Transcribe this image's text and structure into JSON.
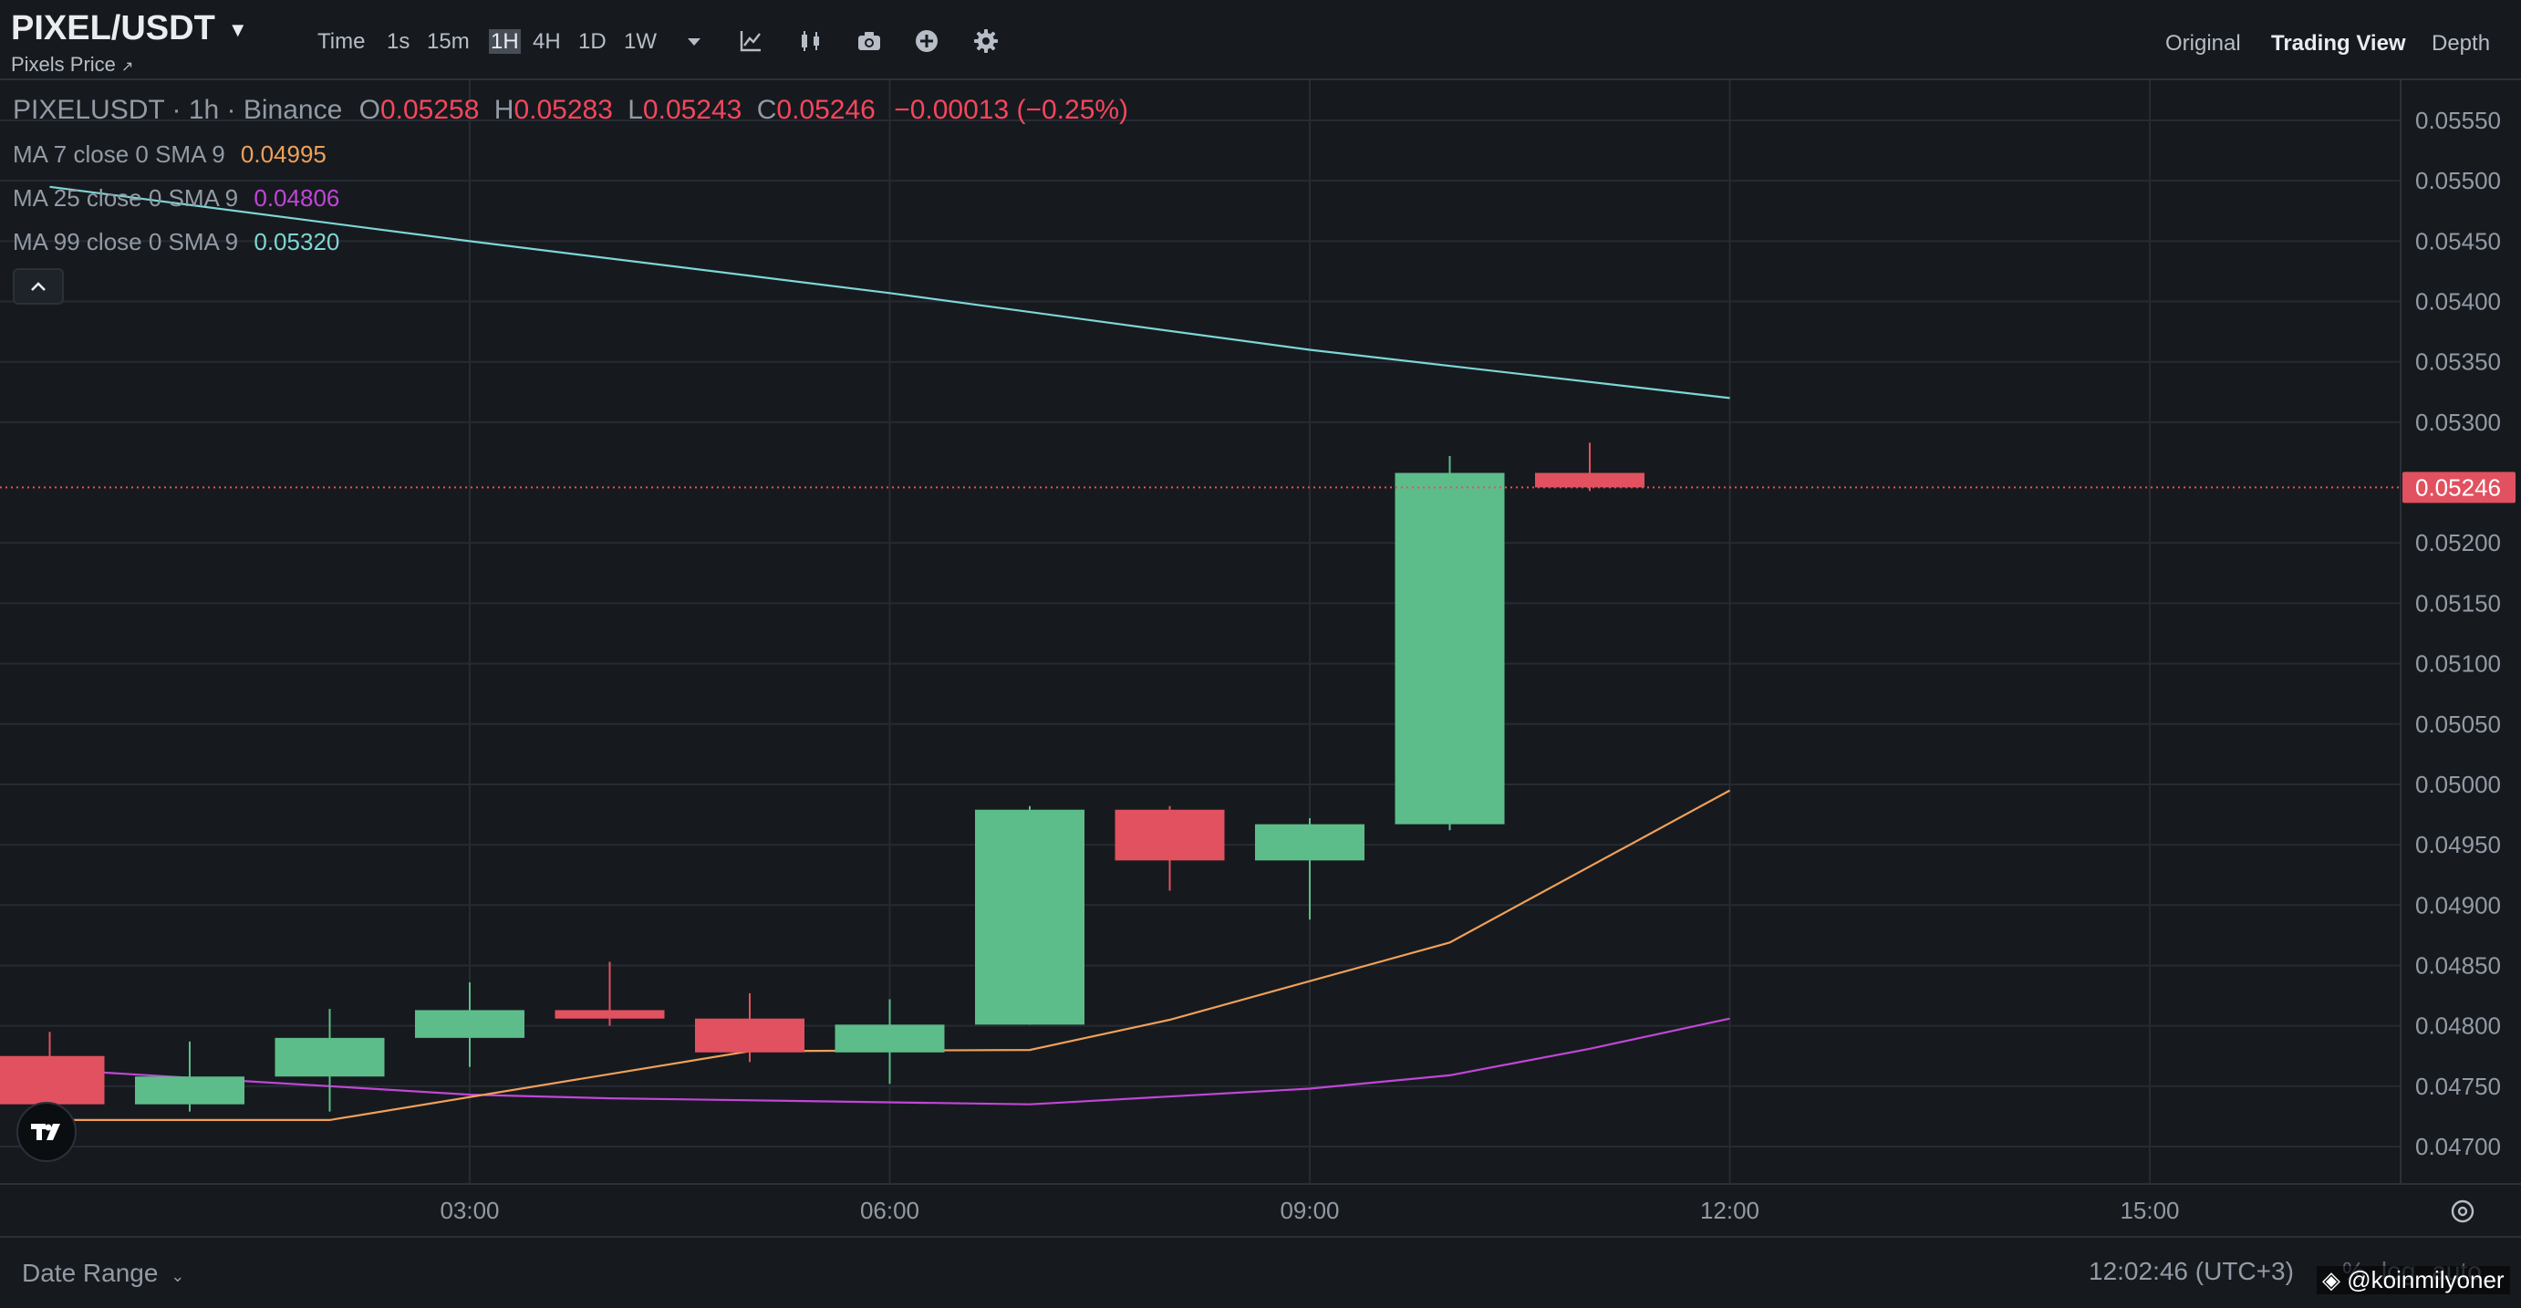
{
  "header": {
    "symbol": "PIXEL/USDT",
    "subtitle": "Pixels Price",
    "subtitle_icon": "external-link-icon",
    "intervals": [
      {
        "label": "Time",
        "active": false
      },
      {
        "label": "1s",
        "active": false
      },
      {
        "label": "15m",
        "active": false
      },
      {
        "label": "1H",
        "active": true
      },
      {
        "label": "4H",
        "active": false
      },
      {
        "label": "1D",
        "active": false
      },
      {
        "label": "1W",
        "active": false
      }
    ],
    "tools": [
      "interval-dropdown-icon",
      "indicators-icon",
      "chart-type-icon",
      "camera-icon",
      "add-icon",
      "settings-icon"
    ],
    "views": [
      {
        "label": "Original",
        "active": false
      },
      {
        "label": "Trading View",
        "active": true
      },
      {
        "label": "Depth",
        "active": false
      }
    ]
  },
  "legend": {
    "pair": "PIXELUSDT · 1h · Binance",
    "o_label": "O",
    "o": "0.05258",
    "h_label": "H",
    "h": "0.05283",
    "l_label": "L",
    "l": "0.05243",
    "c_label": "C",
    "c": "0.05246",
    "change": "−0.00013 (−0.25%)",
    "ma7_label": "MA 7 close 0 SMA 9",
    "ma7_value": "0.04995",
    "ma25_label": "MA 25 close 0 SMA 9",
    "ma25_value": "0.04806",
    "ma99_label": "MA 99 close 0 SMA 9",
    "ma99_value": "0.05320"
  },
  "colors": {
    "up": "#5dbd8a",
    "down": "#e2515f",
    "ma7": "#f0a05a",
    "ma25": "#c146d8",
    "ma99": "#7ed6d6",
    "price_tag": "#e2515f"
  },
  "price_axis": {
    "ticks": [
      "0.05550",
      "0.05500",
      "0.05450",
      "0.05400",
      "0.05350",
      "0.05300",
      "0.05200",
      "0.05150",
      "0.05100",
      "0.05050",
      "0.05000",
      "0.04950",
      "0.04900",
      "0.04850",
      "0.04800",
      "0.04750",
      "0.04700"
    ],
    "last_price": "0.05246"
  },
  "time_axis": {
    "labels": [
      "03:00",
      "06:00",
      "09:00",
      "12:00",
      "15:00"
    ]
  },
  "chart_data": {
    "type": "candlestick",
    "y_range": [
      0.0467,
      0.0558
    ],
    "x_range_hours": [
      0.0,
      15.0
    ],
    "candles": [
      {
        "t": 1.0,
        "o": 0.04775,
        "h": 0.04795,
        "l": 0.0473,
        "c": 0.04735
      },
      {
        "t": 2.0,
        "o": 0.04735,
        "h": 0.04787,
        "l": 0.04729,
        "c": 0.04758
      },
      {
        "t": 3.0,
        "o": 0.04758,
        "h": 0.04814,
        "l": 0.04729,
        "c": 0.0479
      },
      {
        "t": 4.0,
        "o": 0.0479,
        "h": 0.04836,
        "l": 0.04766,
        "c": 0.04813
      },
      {
        "t": 5.0,
        "o": 0.04813,
        "h": 0.04853,
        "l": 0.048,
        "c": 0.04806
      },
      {
        "t": 6.0,
        "o": 0.04806,
        "h": 0.04827,
        "l": 0.0477,
        "c": 0.04778
      },
      {
        "t": 7.0,
        "o": 0.04778,
        "h": 0.04822,
        "l": 0.04752,
        "c": 0.04801
      },
      {
        "t": 8.0,
        "o": 0.04801,
        "h": 0.04982,
        "l": 0.04801,
        "c": 0.04979
      },
      {
        "t": 9.0,
        "o": 0.04979,
        "h": 0.04982,
        "l": 0.04912,
        "c": 0.04937
      },
      {
        "t": 10.0,
        "o": 0.04937,
        "h": 0.04972,
        "l": 0.04888,
        "c": 0.04967
      },
      {
        "t": 11.0,
        "o": 0.04967,
        "h": 0.05272,
        "l": 0.04962,
        "c": 0.05258
      },
      {
        "t": 12.0,
        "o": 0.05258,
        "h": 0.05283,
        "l": 0.05243,
        "c": 0.05246
      }
    ],
    "ma7": [
      [
        0.0,
        0.04722
      ],
      [
        2.0,
        0.04722
      ],
      [
        5.0,
        0.04779
      ],
      [
        7.0,
        0.0478
      ],
      [
        8.0,
        0.04805
      ],
      [
        10.0,
        0.04869
      ],
      [
        12.0,
        0.04995
      ]
    ],
    "ma25": [
      [
        0.0,
        0.04764
      ],
      [
        1.0,
        0.04757
      ],
      [
        3.0,
        0.04743
      ],
      [
        4.0,
        0.0474
      ],
      [
        7.0,
        0.04735
      ],
      [
        9.0,
        0.04748
      ],
      [
        10.0,
        0.04759
      ],
      [
        11.0,
        0.04781
      ],
      [
        12.0,
        0.04806
      ]
    ],
    "ma99": [
      [
        0.0,
        0.05495
      ],
      [
        3.0,
        0.0545
      ],
      [
        6.0,
        0.05407
      ],
      [
        9.0,
        0.0536
      ],
      [
        12.0,
        0.0532
      ]
    ]
  },
  "footer": {
    "date_range": "Date Range",
    "clock": "12:02:46 (UTC+3)",
    "scale_percent": "%",
    "scale_log": "log",
    "scale_auto": "auto",
    "watermark": "@koinmilyoner"
  }
}
